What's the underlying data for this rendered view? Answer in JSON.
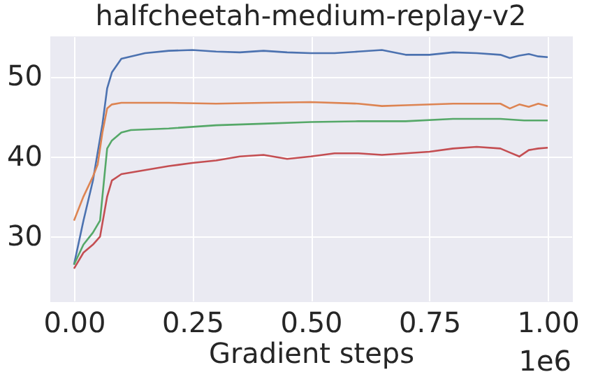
{
  "chart_data": {
    "type": "line",
    "title": "halfcheetah-medium-replay-v2",
    "xlabel": "Gradient steps",
    "annotations": [
      "1e6"
    ],
    "xlim": [
      -0.05,
      1.05
    ],
    "ylim": [
      22,
      55
    ],
    "xticks": [
      {
        "value": 0,
        "label": "0.00"
      },
      {
        "value": 0.25,
        "label": "0.25"
      },
      {
        "value": 0.5,
        "label": "0.50"
      },
      {
        "value": 0.75,
        "label": "0.75"
      },
      {
        "value": 1,
        "label": "1.00"
      }
    ],
    "yticks": [
      30,
      40,
      50
    ],
    "grid": true,
    "marker": "none",
    "line_style": "solid",
    "series": [
      {
        "color": "#4c72b0",
        "x": [
          0,
          0.02,
          0.04,
          0.06,
          0.07,
          0.08,
          0.1,
          0.15,
          0.2,
          0.25,
          0.3,
          0.35,
          0.4,
          0.45,
          0.5,
          0.55,
          0.6,
          0.65,
          0.7,
          0.75,
          0.8,
          0.85,
          0.9,
          0.92,
          0.94,
          0.96,
          0.98,
          1.0
        ],
        "values": [
          26.5,
          32,
          37,
          44,
          48.5,
          50.5,
          52.2,
          52.9,
          53.2,
          53.3,
          53.1,
          53.0,
          53.2,
          53.0,
          52.9,
          52.9,
          53.1,
          53.3,
          52.7,
          52.7,
          53.0,
          52.9,
          52.7,
          52.3,
          52.6,
          52.8,
          52.5,
          52.4
        ]
      },
      {
        "color": "#dd8452",
        "x": [
          0,
          0.02,
          0.04,
          0.05,
          0.06,
          0.07,
          0.08,
          0.1,
          0.2,
          0.3,
          0.4,
          0.5,
          0.6,
          0.65,
          0.7,
          0.8,
          0.9,
          0.92,
          0.94,
          0.96,
          0.98,
          1.0
        ],
        "values": [
          32,
          35,
          37.5,
          39,
          43,
          46,
          46.5,
          46.7,
          46.7,
          46.6,
          46.7,
          46.8,
          46.6,
          46.3,
          46.4,
          46.6,
          46.6,
          46.0,
          46.5,
          46.2,
          46.6,
          46.3
        ]
      },
      {
        "color": "#55a868",
        "x": [
          0,
          0.02,
          0.04,
          0.055,
          0.07,
          0.08,
          0.1,
          0.12,
          0.2,
          0.3,
          0.4,
          0.5,
          0.6,
          0.7,
          0.8,
          0.9,
          0.95,
          1.0
        ],
        "values": [
          26.5,
          29,
          30.5,
          32,
          41,
          42,
          43,
          43.3,
          43.5,
          43.9,
          44.1,
          44.3,
          44.4,
          44.4,
          44.7,
          44.7,
          44.5,
          44.5
        ]
      },
      {
        "color": "#c44e52",
        "x": [
          0,
          0.02,
          0.04,
          0.055,
          0.07,
          0.08,
          0.1,
          0.15,
          0.2,
          0.25,
          0.3,
          0.35,
          0.4,
          0.45,
          0.5,
          0.55,
          0.6,
          0.65,
          0.7,
          0.75,
          0.8,
          0.85,
          0.9,
          0.92,
          0.94,
          0.96,
          0.98,
          1.0
        ],
        "values": [
          26,
          28,
          29,
          30,
          35,
          37,
          37.8,
          38.3,
          38.8,
          39.2,
          39.5,
          40.0,
          40.2,
          39.7,
          40.0,
          40.4,
          40.4,
          40.2,
          40.4,
          40.6,
          41,
          41.2,
          41.0,
          40.5,
          40.0,
          40.8,
          41.0,
          41.1
        ]
      }
    ]
  }
}
